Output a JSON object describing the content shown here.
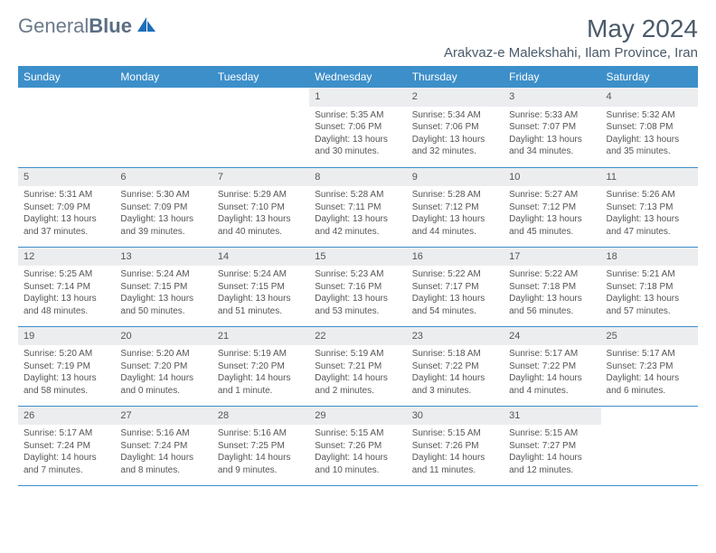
{
  "logo": {
    "word1": "General",
    "word2": "Blue"
  },
  "title": "May 2024",
  "location": "Arakvaz-e Malekshahi, Ilam Province, Iran",
  "colors": {
    "header_bg": "#3d8fc9",
    "header_fg": "#ffffff",
    "daynum_bg": "#ecedef",
    "rule": "#3d8fc9",
    "text": "#555555",
    "title": "#4a5a6a",
    "logo_accent": "#1d6fb8"
  },
  "dayHeaders": [
    "Sunday",
    "Monday",
    "Tuesday",
    "Wednesday",
    "Thursday",
    "Friday",
    "Saturday"
  ],
  "weeks": [
    [
      {
        "empty": true
      },
      {
        "empty": true
      },
      {
        "empty": true
      },
      {
        "n": "1",
        "sr": "Sunrise: 5:35 AM",
        "ss": "Sunset: 7:06 PM",
        "dl": "Daylight: 13 hours and 30 minutes."
      },
      {
        "n": "2",
        "sr": "Sunrise: 5:34 AM",
        "ss": "Sunset: 7:06 PM",
        "dl": "Daylight: 13 hours and 32 minutes."
      },
      {
        "n": "3",
        "sr": "Sunrise: 5:33 AM",
        "ss": "Sunset: 7:07 PM",
        "dl": "Daylight: 13 hours and 34 minutes."
      },
      {
        "n": "4",
        "sr": "Sunrise: 5:32 AM",
        "ss": "Sunset: 7:08 PM",
        "dl": "Daylight: 13 hours and 35 minutes."
      }
    ],
    [
      {
        "n": "5",
        "sr": "Sunrise: 5:31 AM",
        "ss": "Sunset: 7:09 PM",
        "dl": "Daylight: 13 hours and 37 minutes."
      },
      {
        "n": "6",
        "sr": "Sunrise: 5:30 AM",
        "ss": "Sunset: 7:09 PM",
        "dl": "Daylight: 13 hours and 39 minutes."
      },
      {
        "n": "7",
        "sr": "Sunrise: 5:29 AM",
        "ss": "Sunset: 7:10 PM",
        "dl": "Daylight: 13 hours and 40 minutes."
      },
      {
        "n": "8",
        "sr": "Sunrise: 5:28 AM",
        "ss": "Sunset: 7:11 PM",
        "dl": "Daylight: 13 hours and 42 minutes."
      },
      {
        "n": "9",
        "sr": "Sunrise: 5:28 AM",
        "ss": "Sunset: 7:12 PM",
        "dl": "Daylight: 13 hours and 44 minutes."
      },
      {
        "n": "10",
        "sr": "Sunrise: 5:27 AM",
        "ss": "Sunset: 7:12 PM",
        "dl": "Daylight: 13 hours and 45 minutes."
      },
      {
        "n": "11",
        "sr": "Sunrise: 5:26 AM",
        "ss": "Sunset: 7:13 PM",
        "dl": "Daylight: 13 hours and 47 minutes."
      }
    ],
    [
      {
        "n": "12",
        "sr": "Sunrise: 5:25 AM",
        "ss": "Sunset: 7:14 PM",
        "dl": "Daylight: 13 hours and 48 minutes."
      },
      {
        "n": "13",
        "sr": "Sunrise: 5:24 AM",
        "ss": "Sunset: 7:15 PM",
        "dl": "Daylight: 13 hours and 50 minutes."
      },
      {
        "n": "14",
        "sr": "Sunrise: 5:24 AM",
        "ss": "Sunset: 7:15 PM",
        "dl": "Daylight: 13 hours and 51 minutes."
      },
      {
        "n": "15",
        "sr": "Sunrise: 5:23 AM",
        "ss": "Sunset: 7:16 PM",
        "dl": "Daylight: 13 hours and 53 minutes."
      },
      {
        "n": "16",
        "sr": "Sunrise: 5:22 AM",
        "ss": "Sunset: 7:17 PM",
        "dl": "Daylight: 13 hours and 54 minutes."
      },
      {
        "n": "17",
        "sr": "Sunrise: 5:22 AM",
        "ss": "Sunset: 7:18 PM",
        "dl": "Daylight: 13 hours and 56 minutes."
      },
      {
        "n": "18",
        "sr": "Sunrise: 5:21 AM",
        "ss": "Sunset: 7:18 PM",
        "dl": "Daylight: 13 hours and 57 minutes."
      }
    ],
    [
      {
        "n": "19",
        "sr": "Sunrise: 5:20 AM",
        "ss": "Sunset: 7:19 PM",
        "dl": "Daylight: 13 hours and 58 minutes."
      },
      {
        "n": "20",
        "sr": "Sunrise: 5:20 AM",
        "ss": "Sunset: 7:20 PM",
        "dl": "Daylight: 14 hours and 0 minutes."
      },
      {
        "n": "21",
        "sr": "Sunrise: 5:19 AM",
        "ss": "Sunset: 7:20 PM",
        "dl": "Daylight: 14 hours and 1 minute."
      },
      {
        "n": "22",
        "sr": "Sunrise: 5:19 AM",
        "ss": "Sunset: 7:21 PM",
        "dl": "Daylight: 14 hours and 2 minutes."
      },
      {
        "n": "23",
        "sr": "Sunrise: 5:18 AM",
        "ss": "Sunset: 7:22 PM",
        "dl": "Daylight: 14 hours and 3 minutes."
      },
      {
        "n": "24",
        "sr": "Sunrise: 5:17 AM",
        "ss": "Sunset: 7:22 PM",
        "dl": "Daylight: 14 hours and 4 minutes."
      },
      {
        "n": "25",
        "sr": "Sunrise: 5:17 AM",
        "ss": "Sunset: 7:23 PM",
        "dl": "Daylight: 14 hours and 6 minutes."
      }
    ],
    [
      {
        "n": "26",
        "sr": "Sunrise: 5:17 AM",
        "ss": "Sunset: 7:24 PM",
        "dl": "Daylight: 14 hours and 7 minutes."
      },
      {
        "n": "27",
        "sr": "Sunrise: 5:16 AM",
        "ss": "Sunset: 7:24 PM",
        "dl": "Daylight: 14 hours and 8 minutes."
      },
      {
        "n": "28",
        "sr": "Sunrise: 5:16 AM",
        "ss": "Sunset: 7:25 PM",
        "dl": "Daylight: 14 hours and 9 minutes."
      },
      {
        "n": "29",
        "sr": "Sunrise: 5:15 AM",
        "ss": "Sunset: 7:26 PM",
        "dl": "Daylight: 14 hours and 10 minutes."
      },
      {
        "n": "30",
        "sr": "Sunrise: 5:15 AM",
        "ss": "Sunset: 7:26 PM",
        "dl": "Daylight: 14 hours and 11 minutes."
      },
      {
        "n": "31",
        "sr": "Sunrise: 5:15 AM",
        "ss": "Sunset: 7:27 PM",
        "dl": "Daylight: 14 hours and 12 minutes."
      },
      {
        "empty": true
      }
    ]
  ]
}
